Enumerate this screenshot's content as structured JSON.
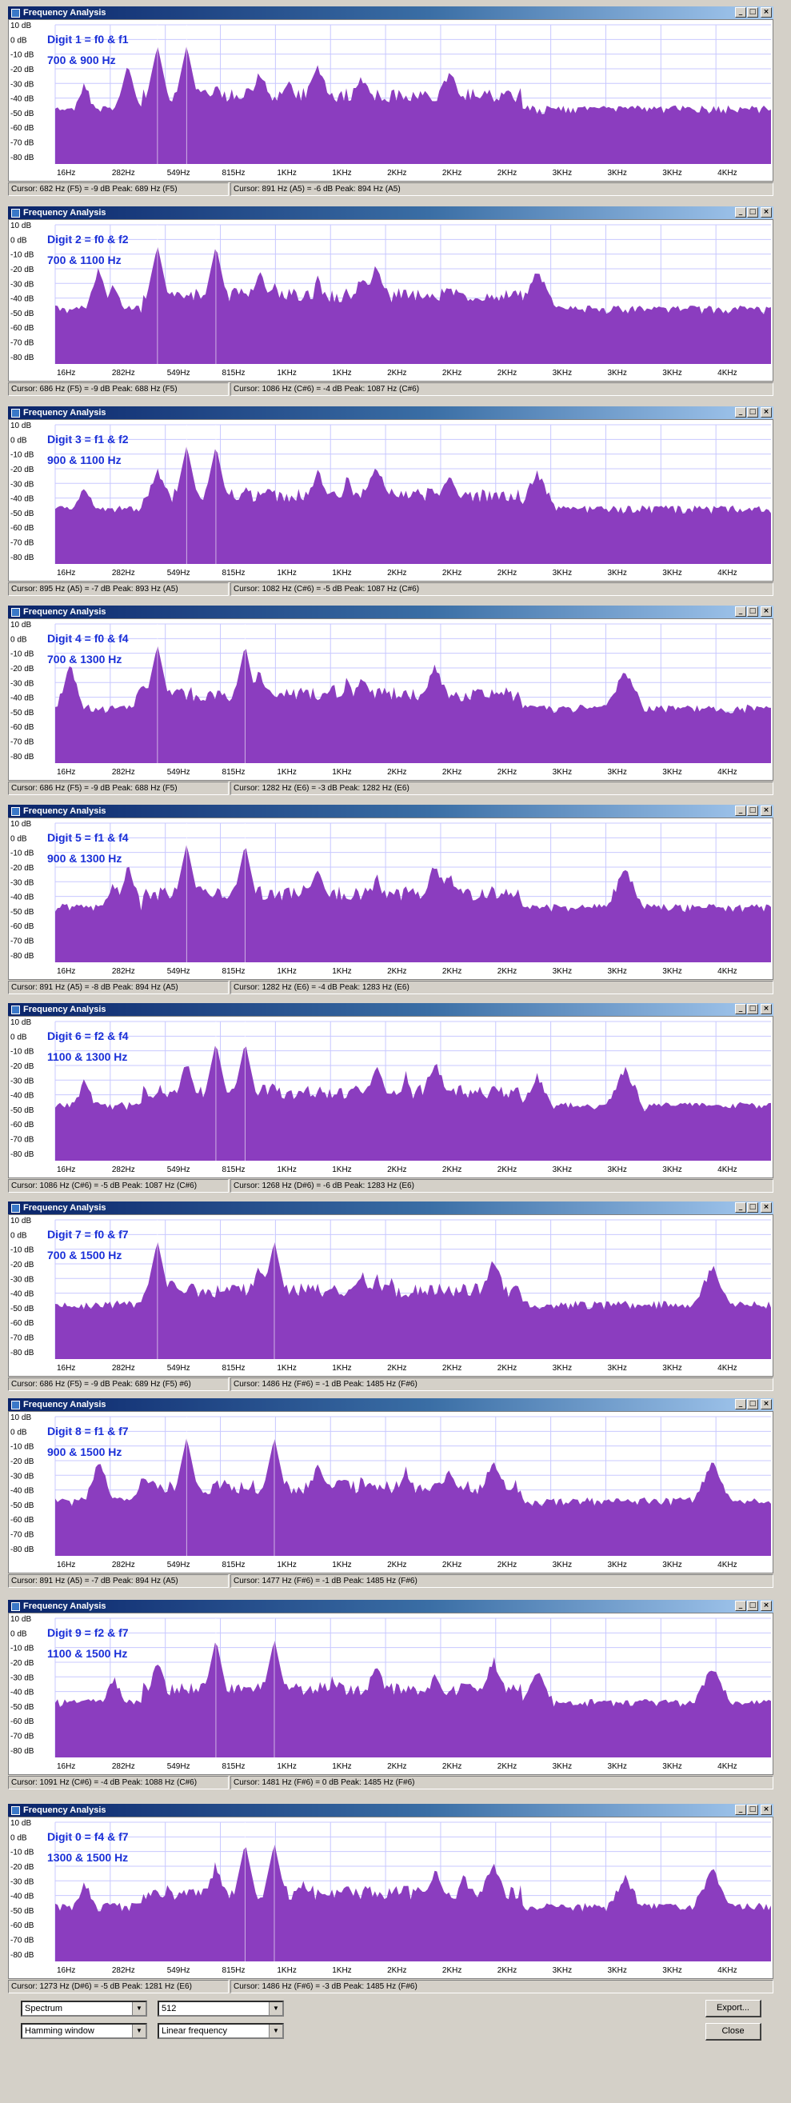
{
  "window_title": "Frequency Analysis",
  "ylabels": [
    "10 dB",
    "0 dB",
    "-10 dB",
    "-20 dB",
    "-30 dB",
    "-40 dB",
    "-50 dB",
    "-60 dB",
    "-70 dB",
    "-80 dB"
  ],
  "xlabels": [
    "16Hz",
    "282Hz",
    "549Hz",
    "815Hz",
    "1KHz",
    "1KHz",
    "2KHz",
    "2KHz",
    "2KHz",
    "3KHz",
    "3KHz",
    "3KHz",
    "4KHz"
  ],
  "colors": {
    "spectrum": "#8b3dbf",
    "grid": "#c8c8ff",
    "overlay_text": "#1a2fd8",
    "title_start": "#0a246a",
    "title_end": "#a6caf0"
  },
  "panels": [
    {
      "line1": "Digit 1 = f0 & f1",
      "line2": "700 & 900 Hz",
      "cursor1": "Cursor: 682 Hz (F5) = -9 dB     Peak: 689 Hz (F5)",
      "cursor2": "Cursor: 891 Hz (A5) = -6 dB     Peak: 894 Hz (A5)",
      "tones": [
        700,
        900
      ]
    },
    {
      "line1": "Digit 2 = f0 & f2",
      "line2": "700 & 1100 Hz",
      "cursor1": "Cursor: 686 Hz (F5) = -9 dB     Peak: 688 Hz (F5)",
      "cursor2": "Cursor: 1086 Hz (C#6) = -4 dB     Peak: 1087 Hz (C#6)",
      "tones": [
        700,
        1100
      ]
    },
    {
      "line1": "Digit 3 = f1 & f2",
      "line2": "900 & 1100 Hz",
      "cursor1": "Cursor: 895 Hz (A5) = -7 dB     Peak: 893 Hz (A5)",
      "cursor2": "Cursor: 1082 Hz (C#6) = -5 dB     Peak: 1087 Hz (C#6)",
      "tones": [
        900,
        1100
      ]
    },
    {
      "line1": "Digit 4 = f0 & f4",
      "line2": "700 & 1300 Hz",
      "cursor1": "Cursor: 686 Hz (F5) = -9 dB     Peak: 688 Hz (F5)",
      "cursor2": "Cursor: 1282 Hz (E6) = -3 dB     Peak: 1282 Hz (E6)",
      "tones": [
        700,
        1300
      ]
    },
    {
      "line1": "Digit 5 = f1 & f4",
      "line2": "900 & 1300 Hz",
      "cursor1": "Cursor: 891 Hz (A5) = -8 dB     Peak: 894 Hz (A5)",
      "cursor2": "Cursor: 1282 Hz (E6) = -4 dB     Peak: 1283 Hz (E6)",
      "tones": [
        900,
        1300
      ]
    },
    {
      "line1": "Digit 6 = f2 & f4",
      "line2": "1100 & 1300 Hz",
      "cursor1": "Cursor: 1086 Hz (C#6) = -5 dB     Peak: 1087 Hz (C#6)",
      "cursor2": "Cursor: 1268 Hz (D#6) = -6 dB     Peak: 1283 Hz (E6)",
      "tones": [
        1100,
        1300
      ]
    },
    {
      "line1": "Digit 7 = f0 & f7",
      "line2": "700 & 1500 Hz",
      "cursor1": "Cursor: 686 Hz (F5) = -9 dB     Peak: 689 Hz (F5)   #6)",
      "cursor2": "Cursor: 1486 Hz (F#6) = -1 dB     Peak: 1485 Hz (F#6)",
      "tones": [
        700,
        1500
      ]
    },
    {
      "line1": "Digit 8 = f1 & f7",
      "line2": "900 & 1500 Hz",
      "cursor1": "Cursor: 891 Hz (A5) = -7 dB     Peak: 894 Hz (A5)",
      "cursor2": "Cursor: 1477 Hz (F#6) = -1 dB     Peak: 1485 Hz (F#6)",
      "tones": [
        900,
        1500
      ]
    },
    {
      "line1": "Digit 9 = f2 & f7",
      "line2": "1100 & 1500 Hz",
      "cursor1": "Cursor: 1091 Hz (C#6) = -4 dB     Peak: 1088 Hz (C#6)",
      "cursor2": "Cursor: 1481 Hz (F#6) = 0 dB     Peak: 1485 Hz (F#6)",
      "tones": [
        1100,
        1500
      ]
    },
    {
      "line1": "Digit 0 = f4 & f7",
      "line2": "1300 & 1500 Hz",
      "cursor1": "Cursor: 1273 Hz (D#6) = -5 dB     Peak: 1281 Hz (E6)",
      "cursor2": "Cursor: 1486 Hz (F#6) = -3 dB     Peak: 1485 Hz (F#6)",
      "tones": [
        1300,
        1500
      ]
    }
  ],
  "controls": {
    "algorithm": "Spectrum",
    "size": "512",
    "window": "Hamming window",
    "axis": "Linear frequency",
    "export_label": "Export...",
    "close_label": "Close"
  }
}
